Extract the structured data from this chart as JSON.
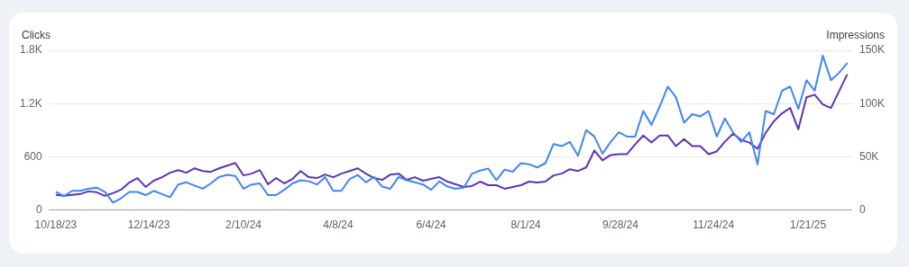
{
  "chart_data": {
    "type": "line",
    "ylabel": "Clicks",
    "y2label": "Impressions",
    "x": [
      "2023-10-18",
      "2023-10-23",
      "2023-10-28",
      "2023-11-02",
      "2023-11-07",
      "2023-11-12",
      "2023-11-17",
      "2023-11-22",
      "2023-11-27",
      "2023-12-02",
      "2023-12-07",
      "2023-12-12",
      "2023-12-17",
      "2023-12-22",
      "2023-12-27",
      "2024-01-01",
      "2024-01-06",
      "2024-01-11",
      "2024-01-16",
      "2024-01-21",
      "2024-01-26",
      "2024-01-31",
      "2024-02-05",
      "2024-02-10",
      "2024-02-15",
      "2024-02-20",
      "2024-02-25",
      "2024-03-01",
      "2024-03-06",
      "2024-03-11",
      "2024-03-16",
      "2024-03-21",
      "2024-03-26",
      "2024-03-31",
      "2024-04-05",
      "2024-04-10",
      "2024-04-15",
      "2024-04-20",
      "2024-04-25",
      "2024-04-30",
      "2024-05-05",
      "2024-05-10",
      "2024-05-15",
      "2024-05-20",
      "2024-05-25",
      "2024-05-30",
      "2024-06-04",
      "2024-06-09",
      "2024-06-14",
      "2024-06-19",
      "2024-06-24",
      "2024-06-29",
      "2024-07-04",
      "2024-07-09",
      "2024-07-14",
      "2024-07-19",
      "2024-07-24",
      "2024-07-29",
      "2024-08-03",
      "2024-08-08",
      "2024-08-13",
      "2024-08-18",
      "2024-08-23",
      "2024-08-28",
      "2024-09-02",
      "2024-09-07",
      "2024-09-12",
      "2024-09-17",
      "2024-09-22",
      "2024-09-27",
      "2024-10-02",
      "2024-10-07",
      "2024-10-12",
      "2024-10-17",
      "2024-10-22",
      "2024-10-27",
      "2024-11-01",
      "2024-11-06",
      "2024-11-11",
      "2024-11-16",
      "2024-11-21",
      "2024-11-26",
      "2024-12-01",
      "2024-12-06",
      "2024-12-11",
      "2024-12-16",
      "2024-12-21",
      "2024-12-26",
      "2024-12-31",
      "2025-01-05",
      "2025-01-10",
      "2025-01-15",
      "2025-01-20",
      "2025-01-25",
      "2025-01-30",
      "2025-02-04",
      "2025-02-09",
      "2025-02-14"
    ],
    "series": [
      {
        "color": "#5e35b1",
        "values": [
          170,
          160,
          170,
          180,
          210,
          200,
          160,
          190,
          230,
          310,
          360,
          260,
          330,
          370,
          420,
          450,
          420,
          470,
          440,
          430,
          470,
          500,
          530,
          390,
          410,
          450,
          290,
          360,
          300,
          350,
          440,
          370,
          360,
          400,
          370,
          410,
          440,
          470,
          410,
          360,
          340,
          400,
          410,
          340,
          370,
          330,
          350,
          370,
          320,
          290,
          260,
          270,
          320,
          280,
          280,
          240,
          260,
          280,
          320,
          310,
          320,
          390,
          410,
          460,
          440,
          480,
          670,
          560,
          620,
          630,
          630,
          740,
          840,
          760,
          840,
          840,
          720,
          800,
          720,
          720,
          630,
          660,
          770,
          860,
          790,
          760,
          690,
          870,
          1000,
          1090,
          1150,
          910,
          1270,
          1300,
          1190,
          1150,
          1340,
          1530
        ]
      },
      {
        "color": "#4285f4",
        "axis": "y2",
        "values": [
          17000,
          13000,
          18000,
          18000,
          20000,
          21000,
          17000,
          7000,
          11000,
          17000,
          17000,
          14000,
          18000,
          15000,
          12000,
          24000,
          26000,
          23000,
          20000,
          25000,
          31000,
          33000,
          32000,
          20000,
          24000,
          25000,
          14000,
          14000,
          19000,
          25000,
          28000,
          27000,
          24000,
          31000,
          18000,
          18000,
          29000,
          33000,
          26000,
          31000,
          22000,
          20000,
          31000,
          28000,
          26000,
          24000,
          19000,
          27000,
          22000,
          20000,
          21000,
          34000,
          37000,
          39000,
          28000,
          38000,
          36000,
          44000,
          43000,
          40000,
          44000,
          62000,
          60000,
          64000,
          51000,
          75000,
          69000,
          53000,
          64000,
          73000,
          69000,
          69000,
          93000,
          80000,
          97000,
          116000,
          106000,
          82000,
          90000,
          88000,
          93000,
          69000,
          86000,
          73000,
          64000,
          73000,
          43000,
          93000,
          90000,
          112000,
          116000,
          95000,
          122000,
          112000,
          145000,
          122000,
          129000,
          138000
        ]
      }
    ],
    "xlim": [
      "2023-10-14",
      "2025-02-17"
    ],
    "xticks": [
      {
        "value": "2023-10-18",
        "label": "10/18/23"
      },
      {
        "value": "2023-12-14",
        "label": "12/14/23"
      },
      {
        "value": "2024-02-10",
        "label": "2/10/24"
      },
      {
        "value": "2024-04-08",
        "label": "4/8/24"
      },
      {
        "value": "2024-06-04",
        "label": "6/4/24"
      },
      {
        "value": "2024-08-01",
        "label": "8/1/24"
      },
      {
        "value": "2024-09-28",
        "label": "9/28/24"
      },
      {
        "value": "2024-11-24",
        "label": "11/24/24"
      },
      {
        "value": "2025-01-21",
        "label": "1/21/25"
      }
    ],
    "ylim": [
      0,
      1800
    ],
    "yticks": [
      0,
      600,
      {
        "value": 1200,
        "label": "1.2K"
      },
      {
        "value": 1800,
        "label": "1.8K"
      }
    ],
    "y2lim": [
      0,
      150000
    ],
    "y2ticks": [
      0,
      {
        "value": 50000,
        "label": "50K"
      },
      {
        "value": 100000,
        "label": "100K"
      },
      {
        "value": 150000,
        "label": "150K"
      }
    ],
    "grid": "y",
    "legend": false,
    "marker": "none",
    "line_style": "solid"
  }
}
